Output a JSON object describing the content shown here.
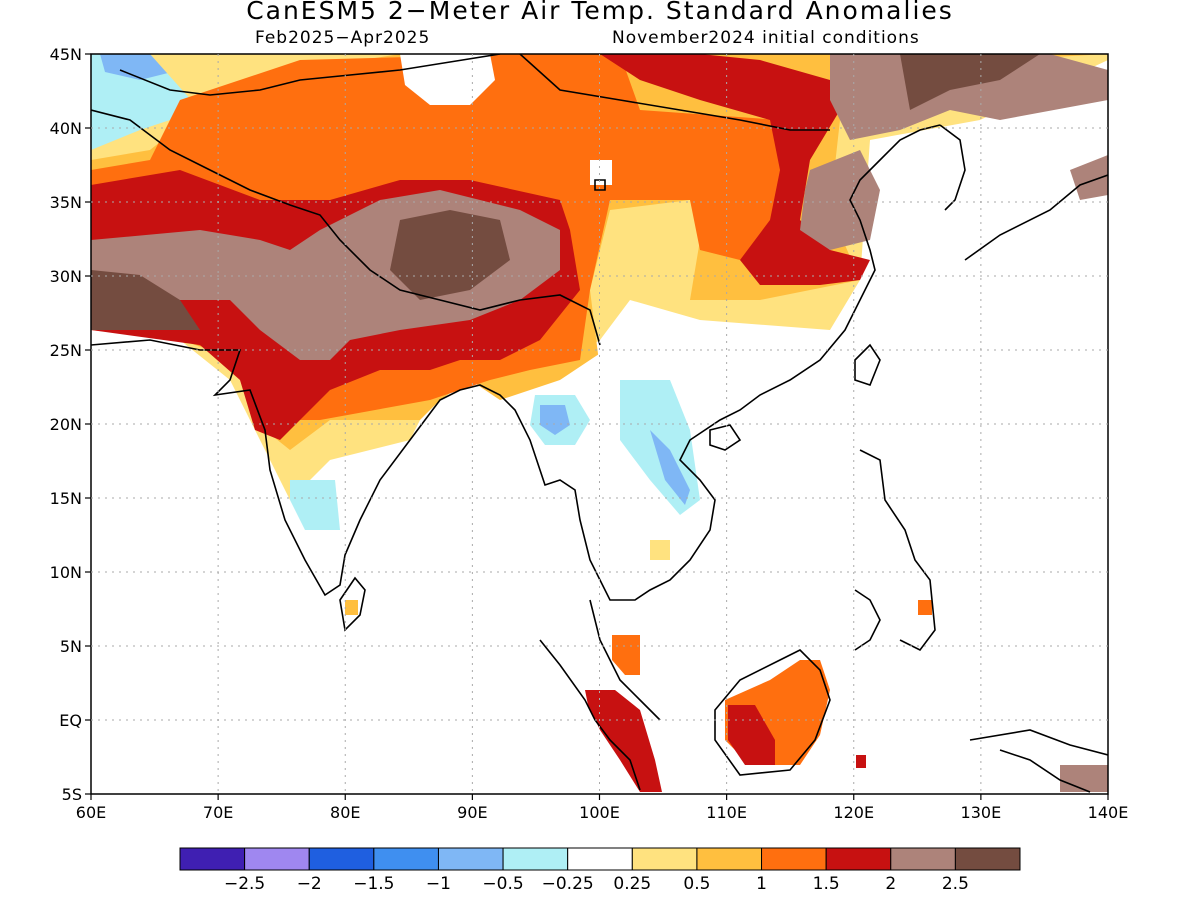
{
  "title": "CanESM5 2−Meter Air Temp. Standard Anomalies",
  "period": "Feb2025−Apr2025",
  "initial_conditions": "November2024 initial conditions",
  "map_extent": {
    "lon_min": 60,
    "lon_max": 140,
    "lat_min": -5,
    "lat_max": 45
  },
  "lon_ticks": [
    {
      "value": 60,
      "label": "60E"
    },
    {
      "value": 70,
      "label": "70E"
    },
    {
      "value": 80,
      "label": "80E"
    },
    {
      "value": 90,
      "label": "90E"
    },
    {
      "value": 100,
      "label": "100E"
    },
    {
      "value": 110,
      "label": "110E"
    },
    {
      "value": 120,
      "label": "120E"
    },
    {
      "value": 130,
      "label": "130E"
    },
    {
      "value": 140,
      "label": "140E"
    }
  ],
  "lat_ticks": [
    {
      "value": 45,
      "label": "45N"
    },
    {
      "value": 40,
      "label": "40N"
    },
    {
      "value": 35,
      "label": "35N"
    },
    {
      "value": 30,
      "label": "30N"
    },
    {
      "value": 25,
      "label": "25N"
    },
    {
      "value": 20,
      "label": "20N"
    },
    {
      "value": 15,
      "label": "15N"
    },
    {
      "value": 10,
      "label": "10N"
    },
    {
      "value": 5,
      "label": "5N"
    },
    {
      "value": 0,
      "label": "EQ"
    },
    {
      "value": -5,
      "label": "5S"
    }
  ],
  "colorbar": {
    "colors": [
      "#3f1fb2",
      "#9f87f0",
      "#1f5fe0",
      "#3f8ff0",
      "#7fb7f5",
      "#afeff5",
      "#ffffff",
      "#ffe27f",
      "#ffbf3f",
      "#ff6f0f",
      "#c71111",
      "#ad837a",
      "#744c40"
    ],
    "labels": [
      "−2.5",
      "−2",
      "−1.5",
      "−1",
      "−0.5",
      "−0.25",
      "0.25",
      "0.5",
      "1",
      "1.5",
      "2",
      "2.5"
    ]
  },
  "colors": {
    "land_outline": "#000000",
    "grid": "#aaaaaa"
  }
}
